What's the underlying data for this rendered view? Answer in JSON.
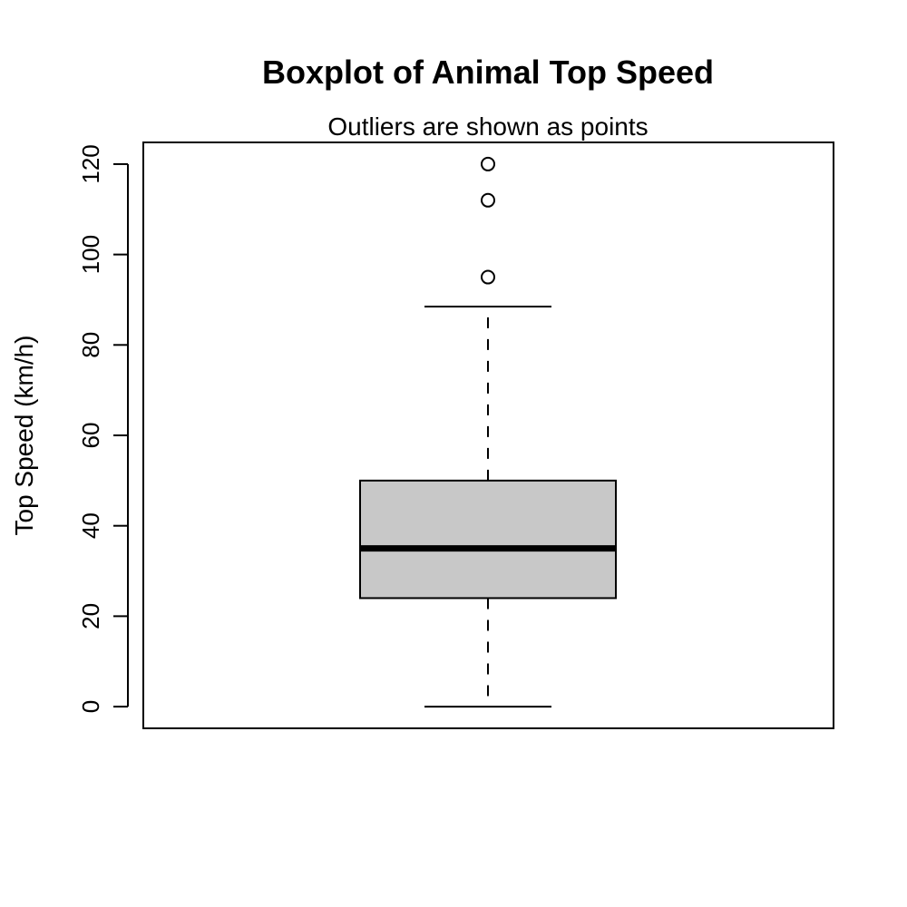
{
  "chart_data": {
    "type": "boxplot",
    "title": "Boxplot of Animal Top Speed",
    "subtitle": "Outliers are shown as points",
    "xlabel": "",
    "ylabel": "Top Speed (km/h)",
    "ylim": [
      -4.8,
      124.8
    ],
    "yticks": [
      0,
      20,
      40,
      60,
      80,
      100,
      120
    ],
    "ytick_labels": [
      "0",
      "20",
      "40",
      "60",
      "80",
      "100",
      "120"
    ],
    "grid": false,
    "box": {
      "whisker_low": 0,
      "q1": 24,
      "median": 35,
      "q3": 50,
      "whisker_high": 88.5,
      "outliers": [
        95,
        112,
        120
      ]
    },
    "colors": {
      "box_fill": "#c8c8c8",
      "stroke": "#000000"
    }
  }
}
